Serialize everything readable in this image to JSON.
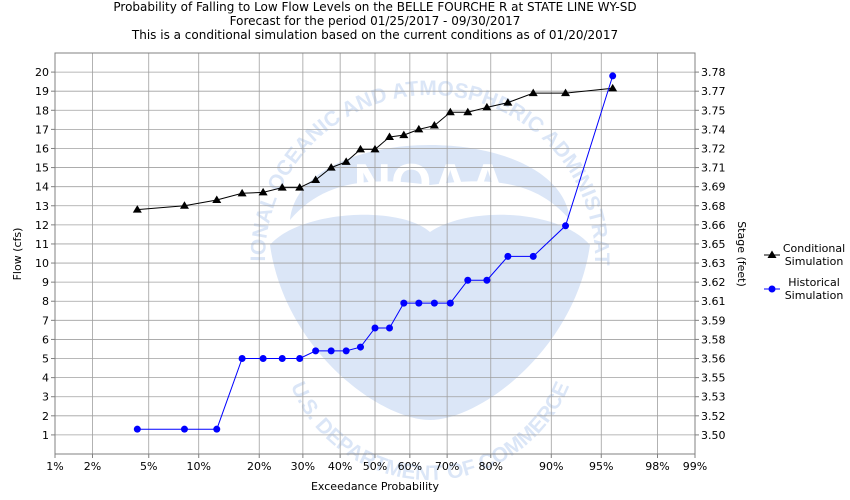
{
  "title_lines": [
    "Probability of Falling to Low Flow Levels on the BELLE FOURCHE R at STATE LINE WY-SD",
    "Forecast for the period 01/25/2017 - 09/30/2017",
    "This is a conditional simulation based on the current conditions as of 01/20/2017"
  ],
  "watermark": {
    "logo_text": "NOAA",
    "ring_text_top": "NATIONAL OCEANIC AND ATMOSPHERIC ADMINISTRATION",
    "ring_text_bottom": "U.S. DEPARTMENT OF COMMERCE",
    "color": "#dbe6f7"
  },
  "chart_data": {
    "type": "line",
    "xlabel": "Exceedance Probability",
    "ylabel": "Flow (cfs)",
    "y2label": "Stage (feet)",
    "x_scale": "normal-probability",
    "x_ticks": [
      {
        "p": 0.01,
        "label": "1%"
      },
      {
        "p": 0.02,
        "label": "2%"
      },
      {
        "p": 0.05,
        "label": "5%"
      },
      {
        "p": 0.1,
        "label": "10%"
      },
      {
        "p": 0.2,
        "label": "20%"
      },
      {
        "p": 0.3,
        "label": "30%"
      },
      {
        "p": 0.4,
        "label": "40%"
      },
      {
        "p": 0.5,
        "label": "50%"
      },
      {
        "p": 0.6,
        "label": "60%"
      },
      {
        "p": 0.7,
        "label": "70%"
      },
      {
        "p": 0.8,
        "label": "80%"
      },
      {
        "p": 0.9,
        "label": "90%"
      },
      {
        "p": 0.95,
        "label": "95%"
      },
      {
        "p": 0.98,
        "label": "98%"
      },
      {
        "p": 0.99,
        "label": "99%"
      }
    ],
    "ylim": [
      0,
      21
    ],
    "y_ticks": [
      1,
      2,
      3,
      4,
      5,
      6,
      7,
      8,
      9,
      10,
      11,
      12,
      13,
      14,
      15,
      16,
      17,
      18,
      19,
      20
    ],
    "y2_ticks": [
      {
        "flow": 1,
        "label": "3.50"
      },
      {
        "flow": 2,
        "label": "3.52"
      },
      {
        "flow": 3,
        "label": "3.53"
      },
      {
        "flow": 4,
        "label": "3.55"
      },
      {
        "flow": 5,
        "label": "3.56"
      },
      {
        "flow": 6,
        "label": "3.58"
      },
      {
        "flow": 7,
        "label": "3.59"
      },
      {
        "flow": 8,
        "label": "3.61"
      },
      {
        "flow": 9,
        "label": "3.62"
      },
      {
        "flow": 10,
        "label": "3.63"
      },
      {
        "flow": 11,
        "label": "3.65"
      },
      {
        "flow": 12,
        "label": "3.66"
      },
      {
        "flow": 13,
        "label": "3.68"
      },
      {
        "flow": 14,
        "label": "3.69"
      },
      {
        "flow": 15,
        "label": "3.71"
      },
      {
        "flow": 16,
        "label": "3.72"
      },
      {
        "flow": 17,
        "label": "3.74"
      },
      {
        "flow": 18,
        "label": "3.75"
      },
      {
        "flow": 19,
        "label": "3.77"
      },
      {
        "flow": 20,
        "label": "3.78"
      }
    ],
    "grid": true,
    "legend_position": "right",
    "series": [
      {
        "name": "Conditional Simulation",
        "marker": "triangle",
        "color": "#000000",
        "points": [
          {
            "p": 0.042,
            "flow": 12.8
          },
          {
            "p": 0.083,
            "flow": 13.0
          },
          {
            "p": 0.125,
            "flow": 13.3
          },
          {
            "p": 0.167,
            "flow": 13.65
          },
          {
            "p": 0.208,
            "flow": 13.7
          },
          {
            "p": 0.25,
            "flow": 13.95
          },
          {
            "p": 0.292,
            "flow": 13.95
          },
          {
            "p": 0.333,
            "flow": 14.35
          },
          {
            "p": 0.375,
            "flow": 15.0
          },
          {
            "p": 0.417,
            "flow": 15.3
          },
          {
            "p": 0.458,
            "flow": 15.95
          },
          {
            "p": 0.5,
            "flow": 15.95
          },
          {
            "p": 0.542,
            "flow": 16.6
          },
          {
            "p": 0.583,
            "flow": 16.7
          },
          {
            "p": 0.625,
            "flow": 17.0
          },
          {
            "p": 0.667,
            "flow": 17.2
          },
          {
            "p": 0.708,
            "flow": 17.9
          },
          {
            "p": 0.75,
            "flow": 17.9
          },
          {
            "p": 0.792,
            "flow": 18.15
          },
          {
            "p": 0.833,
            "flow": 18.4
          },
          {
            "p": 0.875,
            "flow": 18.9
          },
          {
            "p": 0.917,
            "flow": 18.9
          },
          {
            "p": 0.958,
            "flow": 19.15
          }
        ]
      },
      {
        "name": "Historical Simulation",
        "marker": "circle",
        "color": "#0000ff",
        "points": [
          {
            "p": 0.042,
            "flow": 1.3
          },
          {
            "p": 0.083,
            "flow": 1.3
          },
          {
            "p": 0.125,
            "flow": 1.3
          },
          {
            "p": 0.167,
            "flow": 5.0
          },
          {
            "p": 0.208,
            "flow": 5.0
          },
          {
            "p": 0.25,
            "flow": 5.0
          },
          {
            "p": 0.292,
            "flow": 5.0
          },
          {
            "p": 0.333,
            "flow": 5.4
          },
          {
            "p": 0.375,
            "flow": 5.4
          },
          {
            "p": 0.417,
            "flow": 5.4
          },
          {
            "p": 0.458,
            "flow": 5.6
          },
          {
            "p": 0.5,
            "flow": 6.6
          },
          {
            "p": 0.542,
            "flow": 6.6
          },
          {
            "p": 0.583,
            "flow": 7.9
          },
          {
            "p": 0.625,
            "flow": 7.9
          },
          {
            "p": 0.667,
            "flow": 7.9
          },
          {
            "p": 0.708,
            "flow": 7.9
          },
          {
            "p": 0.75,
            "flow": 9.1
          },
          {
            "p": 0.792,
            "flow": 9.1
          },
          {
            "p": 0.833,
            "flow": 10.35
          },
          {
            "p": 0.875,
            "flow": 10.35
          },
          {
            "p": 0.917,
            "flow": 11.95
          },
          {
            "p": 0.958,
            "flow": 19.8
          }
        ]
      }
    ]
  }
}
